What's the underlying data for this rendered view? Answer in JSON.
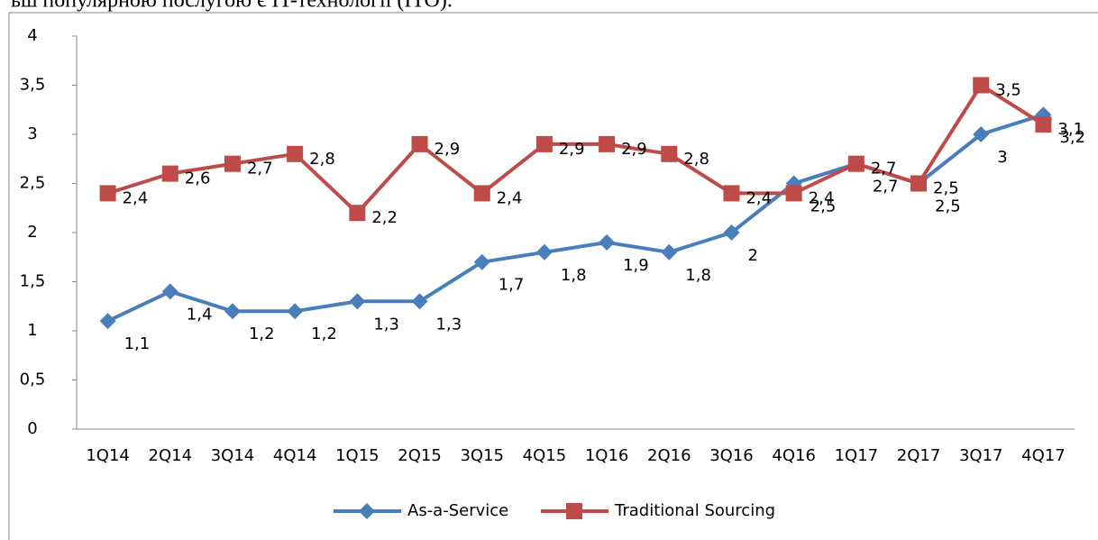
{
  "header_text": "ьш популярною послугою є IT-технології (ITO).",
  "chart_data": {
    "type": "line",
    "categories": [
      "1Q14",
      "2Q14",
      "3Q14",
      "4Q14",
      "1Q15",
      "2Q15",
      "3Q15",
      "4Q15",
      "1Q16",
      "2Q16",
      "3Q16",
      "4Q16",
      "1Q17",
      "2Q17",
      "3Q17",
      "4Q17"
    ],
    "series": [
      {
        "name": "As-a-Service",
        "color": "#4a7ebb",
        "marker": "diamond",
        "values": [
          1.1,
          1.4,
          1.2,
          1.2,
          1.3,
          1.3,
          1.7,
          1.8,
          1.9,
          1.8,
          2,
          2.5,
          2.7,
          2.5,
          3,
          3.2
        ],
        "value_labels": [
          "1,1",
          "1,4",
          "1,2",
          "1,2",
          "1,3",
          "1,3",
          "1,7",
          "1,8",
          "1,9",
          "1,8",
          "2",
          "2,5",
          "2,7",
          "2,5",
          "3",
          "3,2"
        ]
      },
      {
        "name": "Traditional Sourcing",
        "color": "#be4b48",
        "marker": "square",
        "values": [
          2.4,
          2.6,
          2.7,
          2.8,
          2.2,
          2.9,
          2.4,
          2.9,
          2.9,
          2.8,
          2.4,
          2.4,
          2.7,
          2.5,
          3.5,
          3.1
        ],
        "value_labels": [
          "2,4",
          "2,6",
          "2,7",
          "2,8",
          "2,2",
          "2,9",
          "2,4",
          "2,9",
          "2,9",
          "2,8",
          "2,4",
          "2,4",
          "2,7",
          "2,5",
          "3,5",
          "3,1"
        ]
      }
    ],
    "ylim": [
      0,
      4
    ],
    "yticks": [
      0,
      {
        "value": 0.5,
        "label": "0,5"
      },
      1,
      {
        "value": 1.5,
        "label": "1,5"
      },
      2,
      {
        "value": 2.5,
        "label": "2,5"
      },
      3,
      {
        "value": 3.5,
        "label": "3,5"
      },
      4
    ],
    "legend": "bottom"
  }
}
